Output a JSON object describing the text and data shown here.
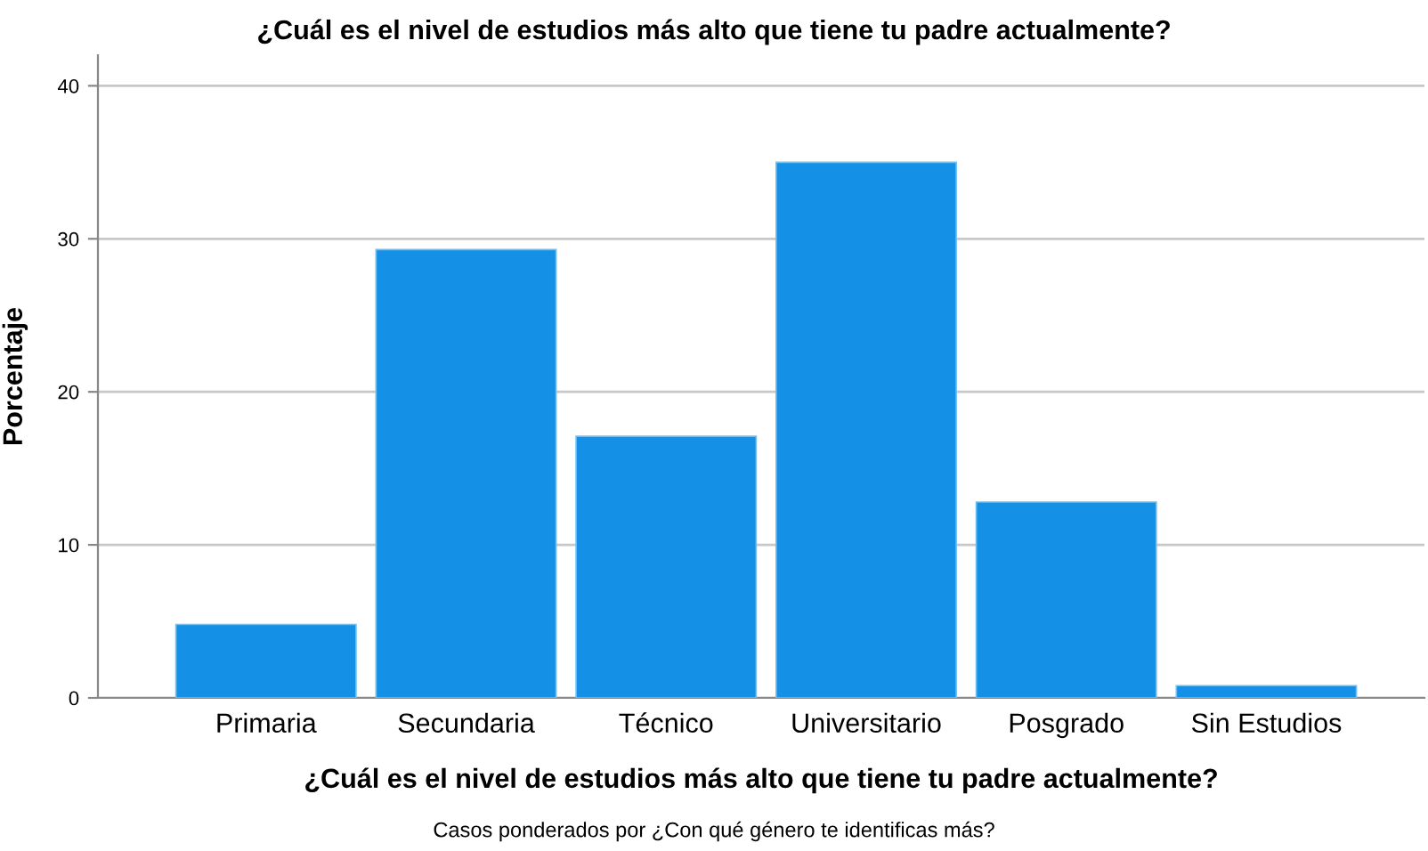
{
  "chart_data": {
    "type": "bar",
    "title": "¿Cuál es el nivel de estudios más alto que tiene tu padre actualmente?",
    "xlabel": "¿Cuál es el nivel de estudios más alto que tiene tu padre actualmente?",
    "ylabel": "Porcentaje",
    "categories": [
      "Primaria",
      "Secundaria",
      "Técnico",
      "Universitario",
      "Posgrado",
      "Sin Estudios"
    ],
    "values": [
      4.8,
      29.3,
      17.1,
      35.0,
      12.8,
      0.8
    ],
    "color": "#1490e6",
    "ylim": [
      0,
      42
    ],
    "yticks": [
      0,
      10,
      20,
      30,
      40
    ],
    "grid": "y",
    "annotations": [
      "Casos ponderados por ¿Con qué género te identificas más?"
    ]
  }
}
